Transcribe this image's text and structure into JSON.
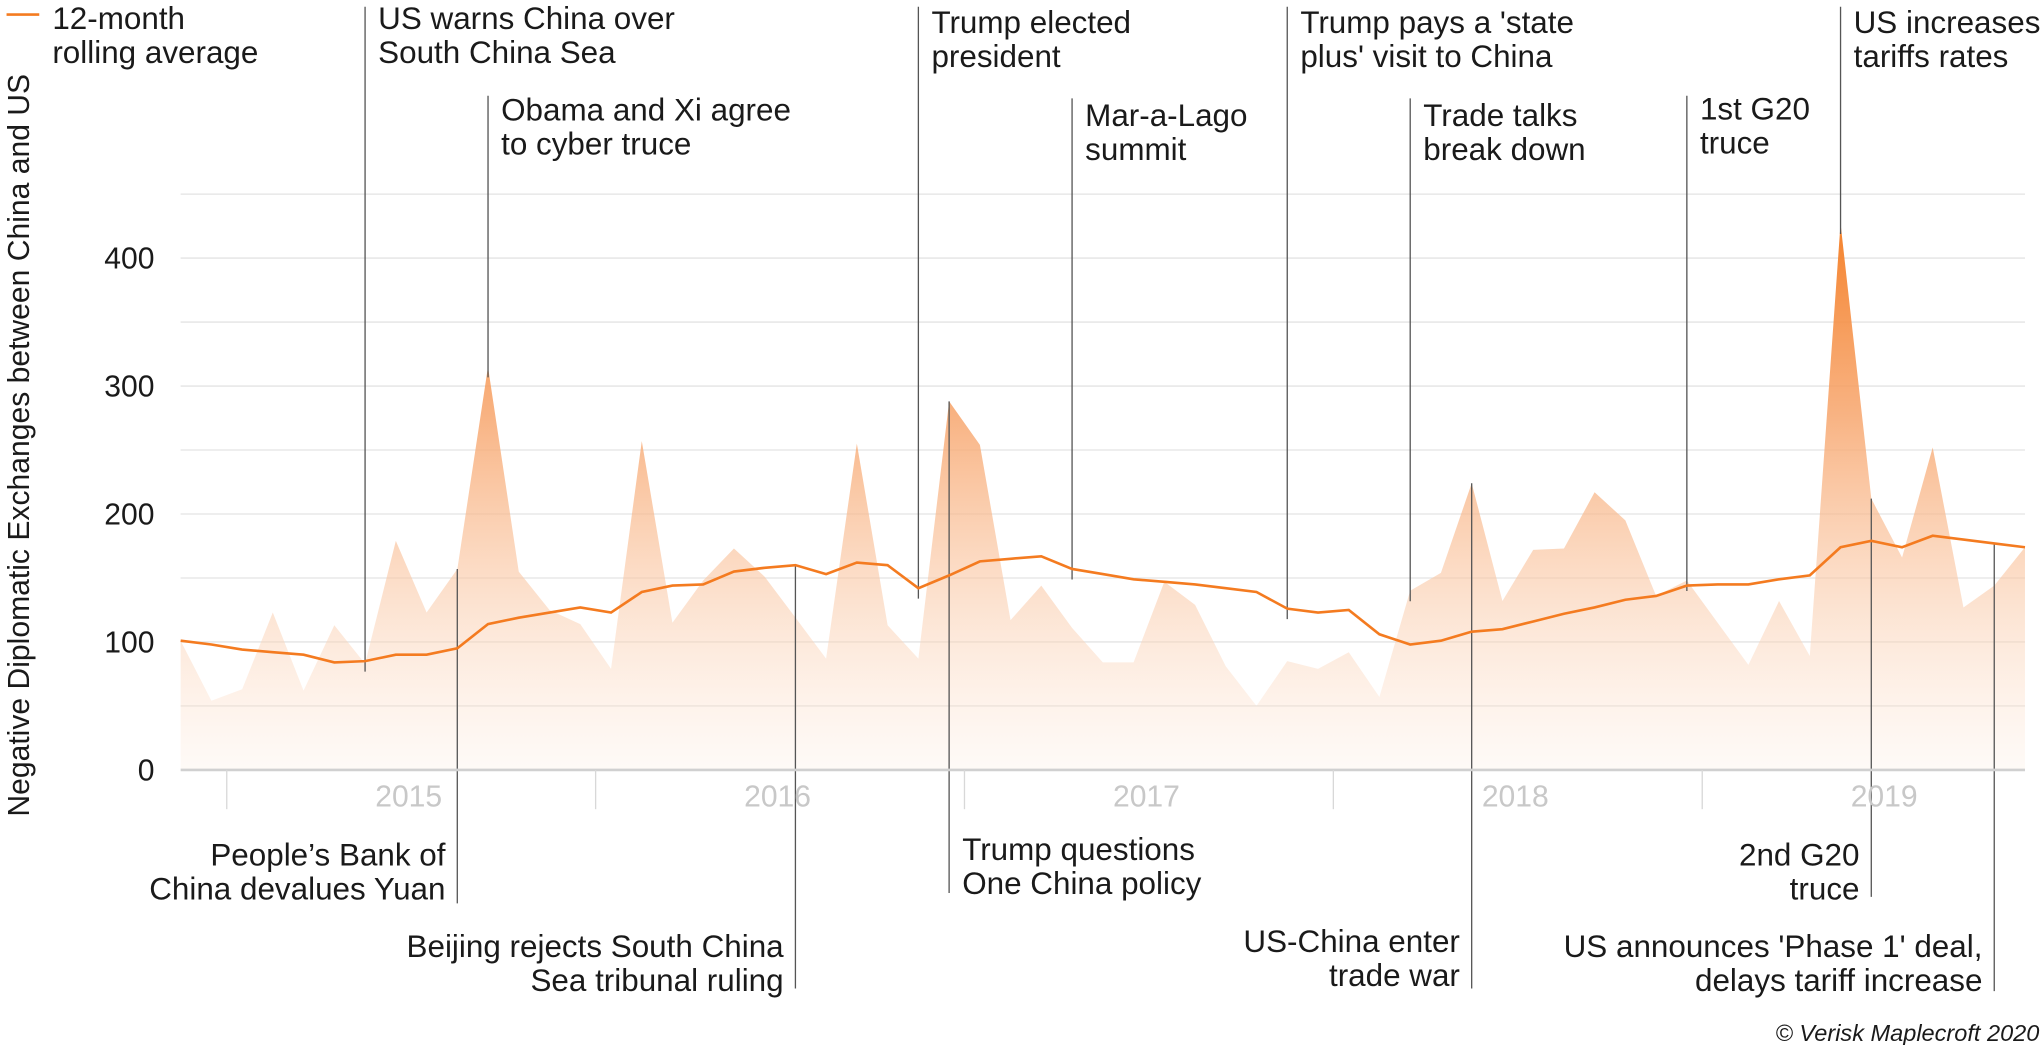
{
  "chart_data": {
    "type": "area",
    "title": "",
    "ylabel": "Negative Diplomatic Exchanges between China and US",
    "xlabel": "",
    "ylim": [
      0,
      450
    ],
    "yticks": [
      0,
      100,
      200,
      300,
      400
    ],
    "year_labels": [
      "2015",
      "2016",
      "2017",
      "2018",
      "2019"
    ],
    "grid": true,
    "legend": {
      "placement": "top-left",
      "label_lines": [
        "12-month",
        "rolling average"
      ]
    },
    "colors": {
      "area_top": "#f47b20",
      "area_bottom": "#ffffff",
      "line": "#f47b20",
      "grid": "#e3e3e3",
      "leader": "#555555"
    },
    "x": [
      "2014-11",
      "2014-12",
      "2015-01",
      "2015-02",
      "2015-03",
      "2015-04",
      "2015-05",
      "2015-06",
      "2015-07",
      "2015-08",
      "2015-09",
      "2015-10",
      "2015-11",
      "2015-12",
      "2016-01",
      "2016-02",
      "2016-03",
      "2016-04",
      "2016-05",
      "2016-06",
      "2016-07",
      "2016-08",
      "2016-09",
      "2016-10",
      "2016-11",
      "2016-12",
      "2017-01",
      "2017-02",
      "2017-03",
      "2017-04",
      "2017-05",
      "2017-06",
      "2017-07",
      "2017-08",
      "2017-09",
      "2017-10",
      "2017-11",
      "2017-12",
      "2018-01",
      "2018-02",
      "2018-03",
      "2018-04",
      "2018-05",
      "2018-06",
      "2018-07",
      "2018-08",
      "2018-09",
      "2018-10",
      "2018-11",
      "2018-12",
      "2019-01",
      "2019-02",
      "2019-03",
      "2019-04",
      "2019-05",
      "2019-06",
      "2019-07",
      "2019-08",
      "2019-09",
      "2019-10",
      "2019-11"
    ],
    "series": [
      {
        "name": "",
        "kind": "area",
        "values": [
          101,
          54,
          63,
          123,
          62,
          113,
          83,
          179,
          123,
          157,
          315,
          155,
          125,
          114,
          79,
          257,
          115,
          148,
          173,
          151,
          119,
          87,
          255,
          113,
          87,
          288,
          254,
          117,
          144,
          111,
          84,
          84,
          147,
          129,
          81,
          50,
          85,
          79,
          92,
          57,
          140,
          154,
          224,
          132,
          172,
          173,
          217,
          195,
          136,
          148,
          115,
          82,
          132,
          89,
          427,
          212,
          166,
          252,
          127,
          144,
          174
        ]
      },
      {
        "name": "12-month rolling average",
        "kind": "line",
        "values": [
          101,
          98,
          94,
          92,
          90,
          84,
          85,
          90,
          90,
          95,
          114,
          119,
          123,
          127,
          123,
          139,
          144,
          145,
          155,
          158,
          160,
          153,
          162,
          160,
          142,
          152,
          163,
          165,
          167,
          157,
          153,
          149,
          147,
          145,
          142,
          139,
          126,
          123,
          125,
          106,
          98,
          101,
          108,
          110,
          116,
          122,
          127,
          133,
          136,
          144,
          145,
          145,
          149,
          152,
          174,
          179,
          174,
          183,
          180,
          177,
          174
        ]
      }
    ],
    "annotations": [
      {
        "date": "2015-05",
        "position": "top",
        "lines": [
          "US warns China over",
          "South China Sea"
        ]
      },
      {
        "date": "2015-09",
        "position": "top",
        "lines": [
          "Obama and Xi agree",
          "to cyber truce"
        ]
      },
      {
        "date": "2016-11",
        "position": "top",
        "lines": [
          "Trump elected",
          "president"
        ]
      },
      {
        "date": "2017-04",
        "position": "top",
        "lines": [
          "Mar-a-Lago",
          "summit"
        ]
      },
      {
        "date": "2017-11",
        "position": "top",
        "lines": [
          "Trump pays a 'state",
          "plus' visit to China"
        ]
      },
      {
        "date": "2018-03",
        "position": "top",
        "lines": [
          "Trade talks",
          "break down"
        ]
      },
      {
        "date": "2018-12",
        "position": "top",
        "lines": [
          "1st G20",
          "truce"
        ]
      },
      {
        "date": "2019-05",
        "position": "top",
        "lines": [
          "US increases",
          "tariffs rates"
        ]
      },
      {
        "date": "2015-08",
        "position": "bottom",
        "lines": [
          "People’s Bank of",
          "China devalues Yuan"
        ]
      },
      {
        "date": "2016-07",
        "position": "bottom",
        "lines": [
          "Beijing rejects South China",
          "Sea tribunal ruling"
        ]
      },
      {
        "date": "2016-12",
        "position": "bottom",
        "lines": [
          "Trump questions",
          "One China policy"
        ]
      },
      {
        "date": "2018-05",
        "position": "bottom",
        "lines": [
          "US-China enter",
          "trade war"
        ]
      },
      {
        "date": "2019-06",
        "position": "bottom",
        "lines": [
          "2nd G20",
          "truce"
        ]
      },
      {
        "date": "2019-10",
        "position": "bottom",
        "lines": [
          "US announces 'Phase 1' deal,",
          "delays tariff increase"
        ]
      }
    ],
    "source": "© Verisk Maplecroft 2020"
  }
}
